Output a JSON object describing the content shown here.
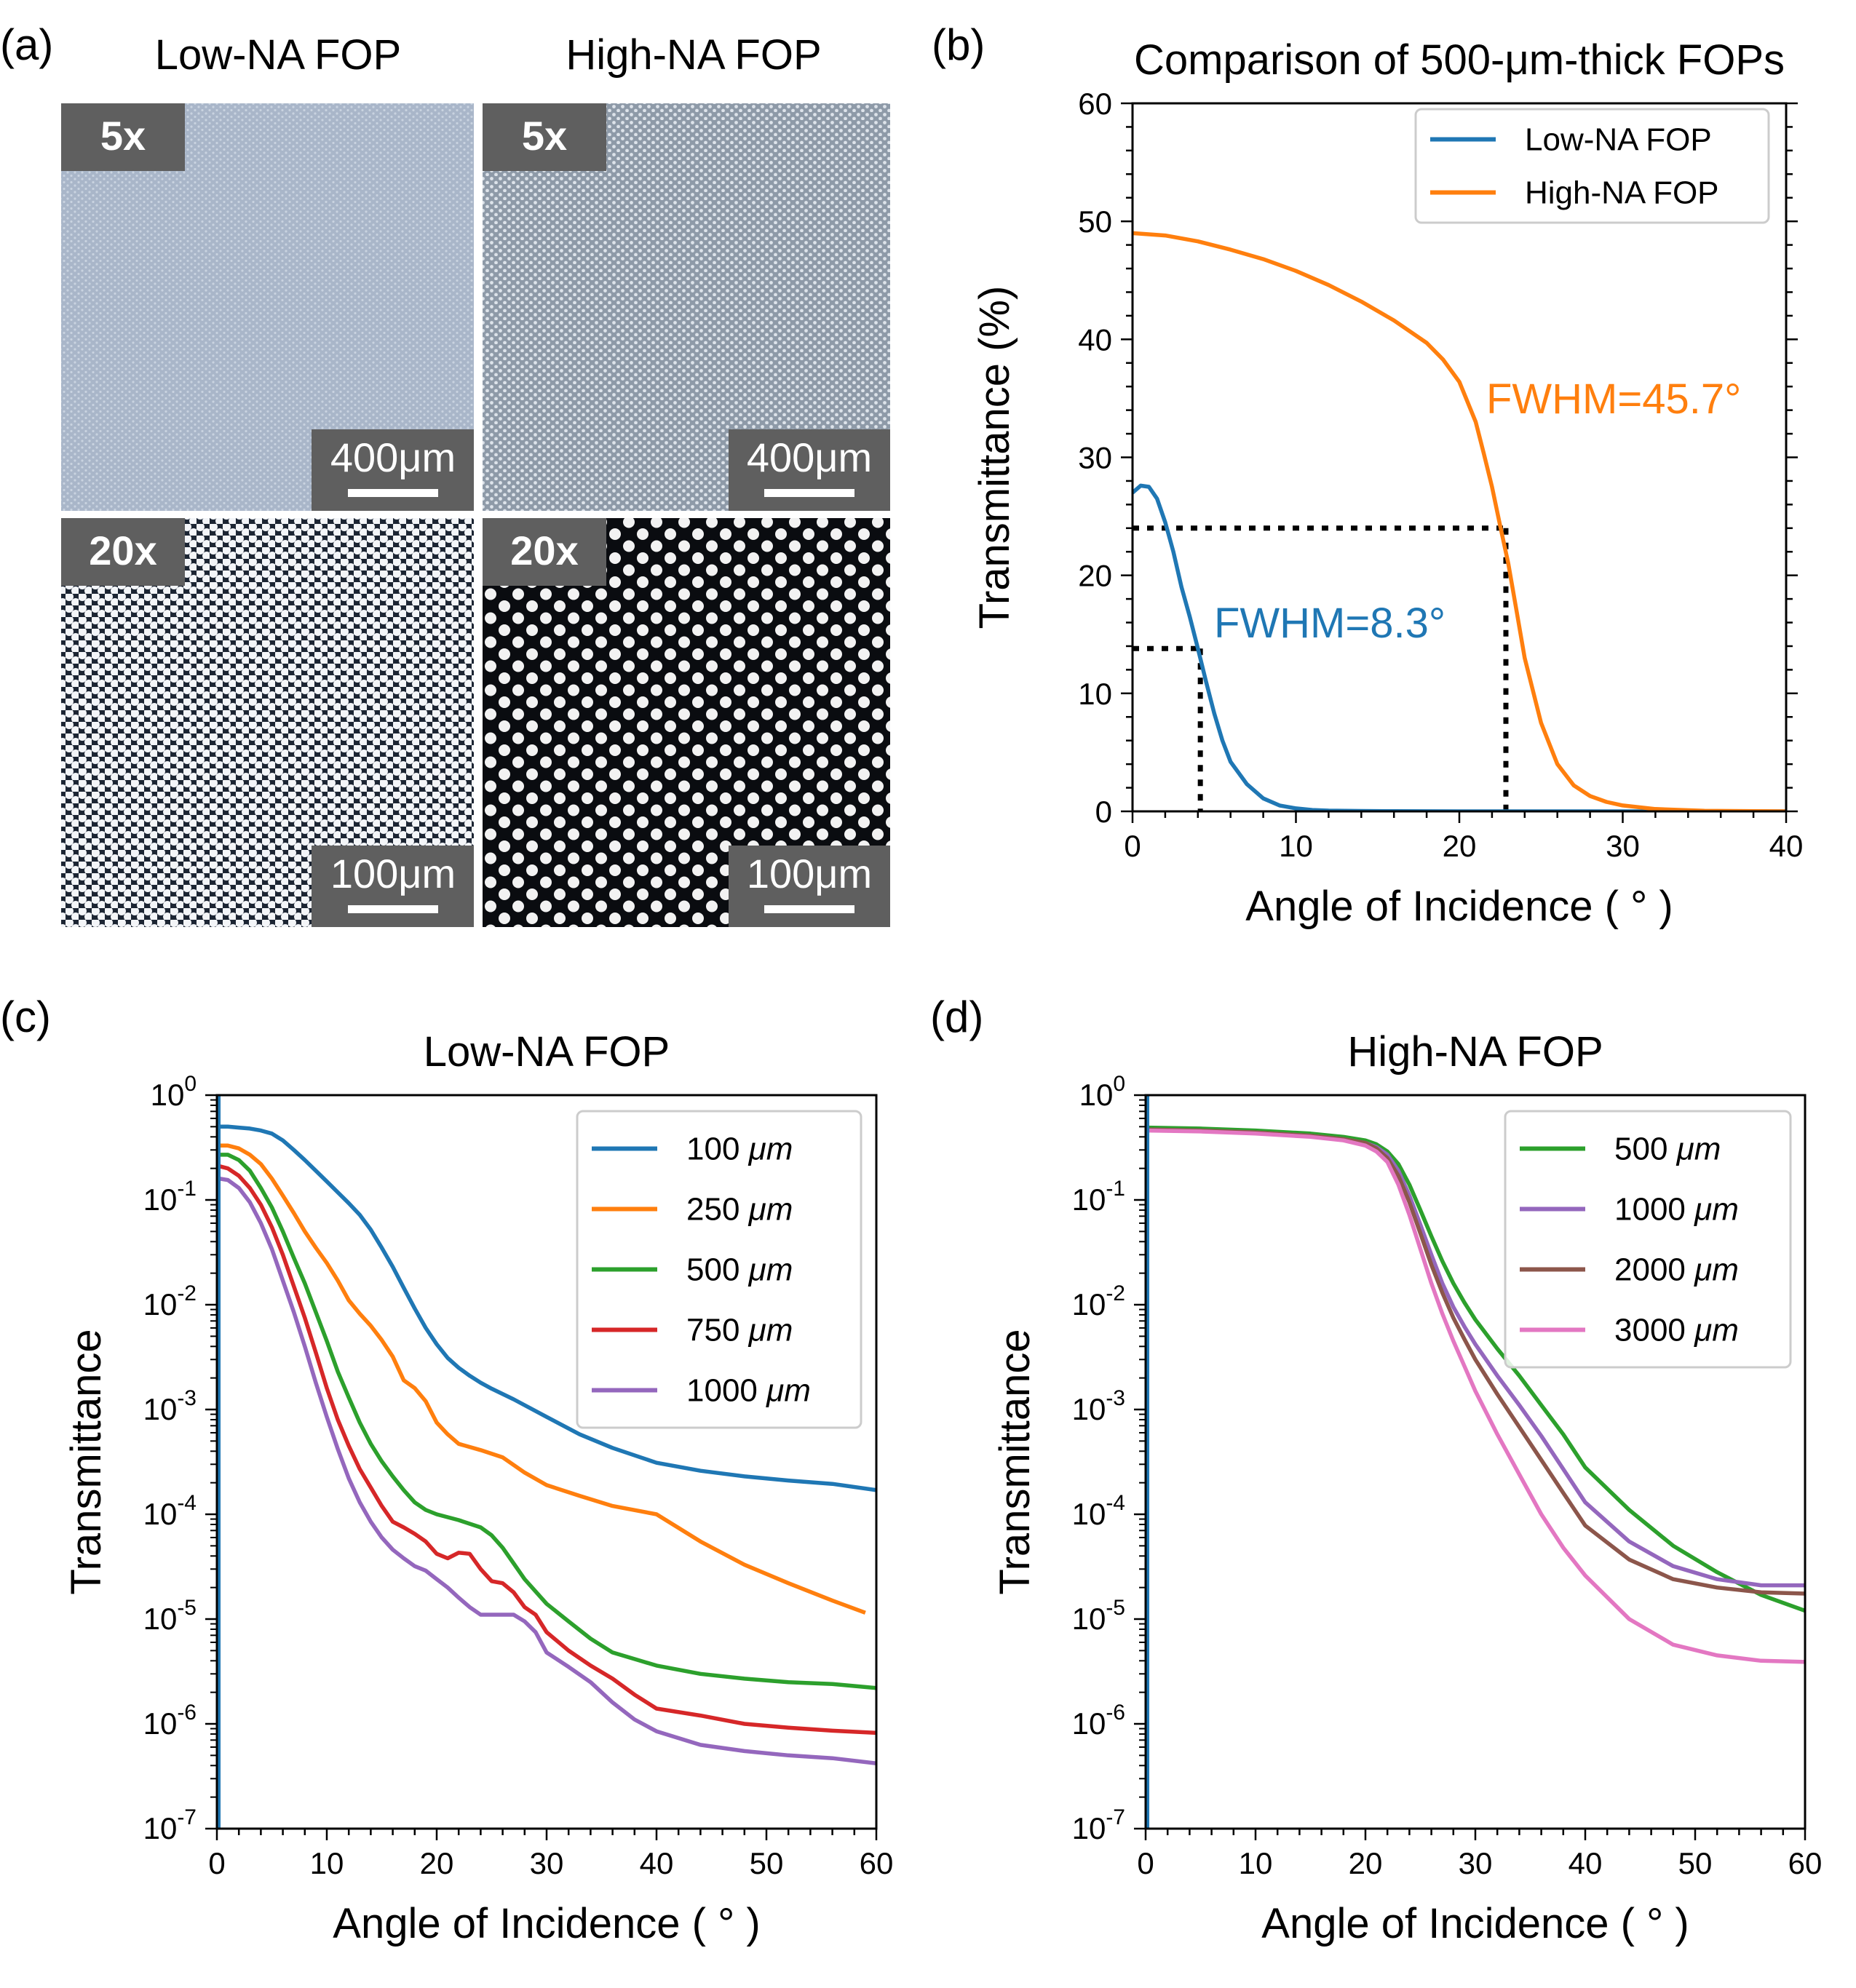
{
  "panel_a": {
    "label": "(a)",
    "col_titles": [
      "Low-NA FOP",
      "High-NA FOP"
    ],
    "images": [
      {
        "magnification": "5x",
        "scalebar": "400μm",
        "fop": "Low-NA FOP"
      },
      {
        "magnification": "5x",
        "scalebar": "400μm",
        "fop": "High-NA FOP"
      },
      {
        "magnification": "20x",
        "scalebar": "100μm",
        "fop": "Low-NA FOP"
      },
      {
        "magnification": "20x",
        "scalebar": "100μm",
        "fop": "High-NA FOP"
      }
    ]
  },
  "colors": {
    "c0": "#1f77b4",
    "c1": "#ff7f0e",
    "c2": "#2ca02c",
    "c3": "#d62728",
    "c4": "#9467bd",
    "c5": "#8c564b",
    "c6": "#e377c2"
  },
  "chart_data": [
    {
      "panel": "(b)",
      "type": "line",
      "title": "Comparison of 500-μm-thick FOPs",
      "xlabel": "Angle of Incidence ( ° )",
      "ylabel": "Transmittance (%)",
      "xlim": [
        0,
        40
      ],
      "ylim": [
        0,
        60
      ],
      "xticks": [
        0,
        10,
        20,
        30,
        40
      ],
      "yticks": [
        0,
        10,
        20,
        30,
        40,
        50,
        60
      ],
      "legend": "top-right",
      "series": [
        {
          "name": "Low-NA FOP",
          "color": "#1f77b4",
          "x": [
            0,
            0.5,
            1,
            1.5,
            2,
            2.5,
            3,
            3.5,
            4,
            4.5,
            5,
            5.5,
            6,
            7,
            8,
            9,
            10,
            11,
            12,
            14,
            16,
            20,
            25,
            30,
            35,
            40
          ],
          "y": [
            27,
            27.6,
            27.5,
            26.5,
            24.5,
            22,
            19,
            16.5,
            13.8,
            11,
            8.3,
            6,
            4.2,
            2.3,
            1.1,
            0.5,
            0.25,
            0.12,
            0.06,
            0.03,
            0.01,
            0,
            0,
            0,
            0,
            0
          ]
        },
        {
          "name": "High-NA FOP",
          "color": "#ff7f0e",
          "x": [
            0,
            2,
            4,
            6,
            8,
            10,
            12,
            14,
            16,
            18,
            19,
            20,
            21,
            21.5,
            22,
            22.5,
            23,
            23.5,
            24,
            25,
            26,
            27,
            28,
            29,
            30,
            32,
            35,
            40
          ],
          "y": [
            49,
            48.8,
            48.3,
            47.6,
            46.8,
            45.8,
            44.6,
            43.2,
            41.6,
            39.7,
            38.3,
            36.4,
            33,
            30.3,
            27.5,
            24.2,
            21,
            17,
            13,
            7.5,
            4,
            2.2,
            1.3,
            0.8,
            0.5,
            0.2,
            0.05,
            0
          ]
        }
      ],
      "annotations": [
        {
          "text": "FWHM=8.3°",
          "color": "#1f77b4"
        },
        {
          "text": "FWHM=45.7°",
          "color": "#ff7f0e"
        }
      ],
      "guides": [
        {
          "series": "Low-NA FOP",
          "x_half": 4.15,
          "y_half": 13.8
        },
        {
          "series": "High-NA FOP",
          "x_half": 22.85,
          "y_half": 24
        }
      ]
    },
    {
      "panel": "(c)",
      "type": "line",
      "yscale": "log",
      "title": "Low-NA FOP",
      "xlabel": "Angle of Incidence ( ° )",
      "ylabel": "Transmittance",
      "xlim": [
        0,
        60
      ],
      "ylim": [
        1e-07,
        1
      ],
      "xticks": [
        0,
        10,
        20,
        30,
        40,
        50,
        60
      ],
      "yticks": [
        -7,
        -6,
        -5,
        -4,
        -3,
        -2,
        -1,
        0
      ],
      "legend": "top-right",
      "series": [
        {
          "name": "100 μm",
          "color": "#1f77b4",
          "x": [
            0.2,
            1,
            2,
            3,
            4,
            5,
            6,
            7,
            8,
            9,
            10,
            11,
            12,
            13,
            14,
            15,
            16,
            17,
            18,
            19,
            20,
            21,
            22,
            23,
            24,
            25,
            27,
            30,
            33,
            36,
            40,
            44,
            48,
            52,
            56,
            60
          ],
          "y": [
            0.5,
            0.5,
            0.49,
            0.48,
            0.46,
            0.43,
            0.37,
            0.3,
            0.24,
            0.19,
            0.15,
            0.118,
            0.093,
            0.072,
            0.052,
            0.035,
            0.023,
            0.0145,
            0.0092,
            0.006,
            0.0042,
            0.0031,
            0.0025,
            0.0021,
            0.0018,
            0.00158,
            0.00125,
            0.00085,
            0.00058,
            0.00043,
            0.00031,
            0.00026,
            0.00023,
            0.00021,
            0.000195,
            0.00017
          ]
        },
        {
          "name": "250 μm",
          "color": "#ff7f0e",
          "x": [
            0.2,
            1,
            2,
            3,
            4,
            5,
            6,
            7,
            8,
            9,
            10,
            11,
            12,
            13,
            14,
            15,
            16,
            17,
            18,
            19,
            20,
            21,
            22,
            24,
            26,
            28,
            30,
            33,
            36,
            40,
            44,
            48,
            52,
            56,
            59
          ],
          "y": [
            0.33,
            0.33,
            0.31,
            0.27,
            0.22,
            0.16,
            0.11,
            0.075,
            0.05,
            0.035,
            0.025,
            0.017,
            0.011,
            0.0082,
            0.0063,
            0.0046,
            0.0032,
            0.0019,
            0.0016,
            0.0012,
            0.00075,
            0.00058,
            0.00047,
            0.00041,
            0.00035,
            0.00025,
            0.00019,
            0.00015,
            0.00012,
            0.0001,
            5.5e-05,
            3.3e-05,
            2.2e-05,
            1.5e-05,
            1.15e-05
          ]
        },
        {
          "name": "500 μm",
          "color": "#2ca02c",
          "x": [
            0.2,
            1,
            2,
            3,
            4,
            5,
            6,
            7,
            8,
            9,
            10,
            11,
            12,
            13,
            14,
            15,
            16,
            17,
            18,
            19,
            20,
            22,
            24,
            25,
            26,
            27,
            28,
            30,
            32,
            34,
            36,
            40,
            44,
            48,
            52,
            56,
            60
          ],
          "y": [
            0.27,
            0.27,
            0.24,
            0.19,
            0.13,
            0.085,
            0.05,
            0.028,
            0.016,
            0.0085,
            0.0045,
            0.0023,
            0.0013,
            0.00075,
            0.00047,
            0.00032,
            0.00023,
            0.00017,
            0.00013,
            0.00011,
            0.0001,
            8.8e-05,
            7.5e-05,
            6.3e-05,
            4.8e-05,
            3.4e-05,
            2.4e-05,
            1.4e-05,
            9.5e-06,
            6.5e-06,
            4.8e-06,
            3.6e-06,
            3e-06,
            2.7e-06,
            2.5e-06,
            2.4e-06,
            2.2e-06
          ]
        },
        {
          "name": "750 μm",
          "color": "#d62728",
          "x": [
            0.2,
            1,
            2,
            3,
            4,
            5,
            6,
            7,
            8,
            9,
            10,
            11,
            12,
            13,
            14,
            15,
            16,
            17,
            18,
            19,
            20,
            21,
            22,
            23,
            24,
            25,
            26,
            27,
            28,
            29,
            30,
            32,
            34,
            36,
            38,
            40,
            44,
            48,
            52,
            56,
            60
          ],
          "y": [
            0.21,
            0.2,
            0.17,
            0.13,
            0.09,
            0.055,
            0.03,
            0.015,
            0.0075,
            0.0035,
            0.0016,
            0.0008,
            0.00045,
            0.00027,
            0.00018,
            0.00012,
            8.5e-05,
            7.5e-05,
            6.5e-05,
            5.5e-05,
            4.2e-05,
            3.8e-05,
            4.3e-05,
            4.2e-05,
            3e-05,
            2.3e-05,
            2.2e-05,
            1.8e-05,
            1.3e-05,
            1.1e-05,
            7.5e-06,
            5e-06,
            3.6e-06,
            2.7e-06,
            1.9e-06,
            1.4e-06,
            1.2e-06,
            1e-06,
            9.2e-07,
            8.6e-07,
            8.2e-07
          ]
        },
        {
          "name": "1000 μm",
          "color": "#9467bd",
          "x": [
            0.2,
            1,
            2,
            3,
            4,
            5,
            6,
            7,
            8,
            9,
            10,
            11,
            12,
            13,
            14,
            15,
            16,
            17,
            18,
            19,
            20,
            21,
            22,
            23,
            24,
            25,
            26,
            27,
            28,
            29,
            30,
            32,
            34,
            36,
            38,
            40,
            44,
            48,
            52,
            56,
            60
          ],
          "y": [
            0.16,
            0.155,
            0.13,
            0.095,
            0.06,
            0.034,
            0.017,
            0.0085,
            0.004,
            0.0018,
            0.00085,
            0.00042,
            0.00022,
            0.00013,
            8.5e-05,
            6e-05,
            4.6e-05,
            3.8e-05,
            3.2e-05,
            2.9e-05,
            2.4e-05,
            2e-05,
            1.6e-05,
            1.3e-05,
            1.1e-05,
            1.1e-05,
            1.1e-05,
            1.1e-05,
            9.5e-06,
            7.5e-06,
            4.8e-06,
            3.5e-06,
            2.5e-06,
            1.6e-06,
            1.1e-06,
            8.5e-07,
            6.3e-07,
            5.5e-07,
            5e-07,
            4.7e-07,
            4.2e-07
          ]
        }
      ]
    },
    {
      "panel": "(d)",
      "type": "line",
      "yscale": "log",
      "title": "High-NA FOP",
      "xlabel": "Angle of Incidence ( ° )",
      "ylabel": "Transmittance",
      "xlim": [
        0,
        60
      ],
      "ylim": [
        1e-07,
        1
      ],
      "xticks": [
        0,
        10,
        20,
        30,
        40,
        50,
        60
      ],
      "yticks": [
        -7,
        -6,
        -5,
        -4,
        -3,
        -2,
        -1,
        0
      ],
      "legend": "top-right",
      "series": [
        {
          "name": "500 μm",
          "color": "#2ca02c",
          "x": [
            0.2,
            5,
            10,
            15,
            18,
            20,
            21,
            22,
            23,
            24,
            25,
            26,
            27,
            28,
            29,
            30,
            32,
            34,
            36,
            38,
            40,
            44,
            48,
            52,
            56,
            60
          ],
          "y": [
            0.49,
            0.48,
            0.46,
            0.43,
            0.4,
            0.37,
            0.34,
            0.29,
            0.22,
            0.14,
            0.08,
            0.045,
            0.026,
            0.016,
            0.0105,
            0.0072,
            0.0038,
            0.0021,
            0.0011,
            0.00058,
            0.00028,
            0.00011,
            5e-05,
            2.8e-05,
            1.7e-05,
            1.2e-05
          ]
        },
        {
          "name": "1000 μm",
          "color": "#9467bd",
          "x": [
            0.2,
            5,
            10,
            15,
            18,
            20,
            21,
            22,
            23,
            24,
            25,
            26,
            27,
            28,
            29,
            30,
            32,
            34,
            36,
            38,
            40,
            44,
            48,
            52,
            56,
            60
          ],
          "y": [
            0.47,
            0.46,
            0.44,
            0.41,
            0.38,
            0.35,
            0.32,
            0.27,
            0.19,
            0.11,
            0.058,
            0.03,
            0.016,
            0.0095,
            0.0062,
            0.0042,
            0.0021,
            0.0011,
            0.00056,
            0.00027,
            0.00013,
            5.5e-05,
            3.2e-05,
            2.4e-05,
            2.1e-05,
            2.1e-05
          ]
        },
        {
          "name": "2000 μm",
          "color": "#8c564b",
          "x": [
            0.2,
            5,
            10,
            15,
            18,
            20,
            21,
            22,
            23,
            24,
            25,
            26,
            27,
            28,
            29,
            30,
            32,
            34,
            36,
            38,
            40,
            44,
            48,
            52,
            56,
            60
          ],
          "y": [
            0.47,
            0.46,
            0.44,
            0.41,
            0.38,
            0.35,
            0.31,
            0.25,
            0.17,
            0.095,
            0.048,
            0.024,
            0.013,
            0.0075,
            0.0047,
            0.003,
            0.0014,
            0.00068,
            0.00033,
            0.00016,
            7.8e-05,
            3.7e-05,
            2.4e-05,
            2e-05,
            1.8e-05,
            1.75e-05
          ]
        },
        {
          "name": "3000 μm",
          "color": "#e377c2",
          "x": [
            0.2,
            5,
            10,
            15,
            18,
            20,
            21,
            22,
            23,
            24,
            25,
            26,
            27,
            28,
            29,
            30,
            32,
            34,
            36,
            38,
            40,
            44,
            48,
            52,
            56,
            60
          ],
          "y": [
            0.46,
            0.45,
            0.43,
            0.4,
            0.37,
            0.33,
            0.29,
            0.23,
            0.14,
            0.072,
            0.034,
            0.016,
            0.0082,
            0.0045,
            0.0026,
            0.0015,
            0.00058,
            0.00024,
            0.0001,
            4.8e-05,
            2.6e-05,
            1e-05,
            5.7e-06,
            4.5e-06,
            4e-06,
            3.9e-06
          ]
        }
      ]
    }
  ]
}
